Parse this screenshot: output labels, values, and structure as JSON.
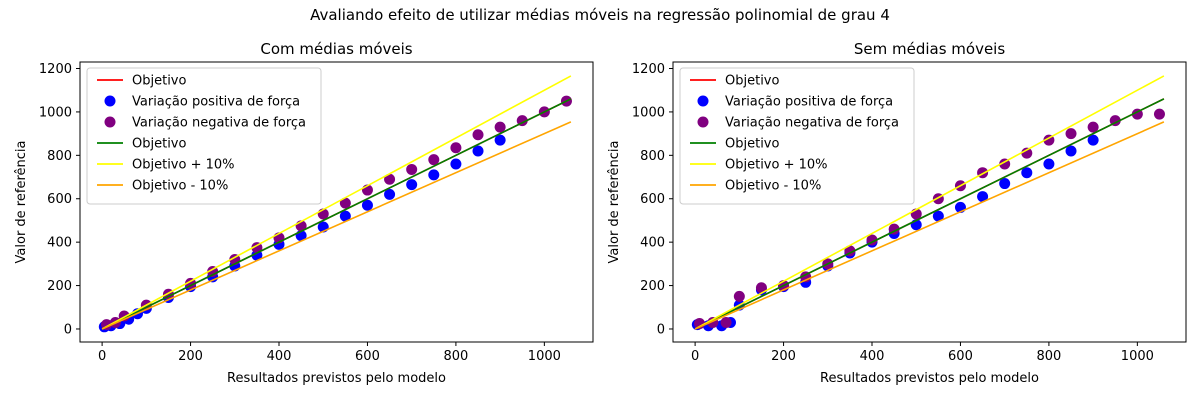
{
  "figure": {
    "suptitle": "Avaliando efeito de utilizar médias móveis na regressão polinomial de grau 4"
  },
  "colors": {
    "objetivo_red": "#ff0000",
    "positive": "#0000ff",
    "negative": "#800080",
    "objetivo_green": "#008000",
    "plus10": "#ffff00",
    "minus10": "#ffa500"
  },
  "chart_data": [
    {
      "type": "scatter",
      "title": "Com médias móveis",
      "xlabel": "Resultados previstos pelo modelo",
      "ylabel": "Valor de referência",
      "xlim": [
        -50,
        1110
      ],
      "ylim": [
        -60,
        1230
      ],
      "xticks": [
        0,
        200,
        400,
        600,
        800,
        1000
      ],
      "yticks": [
        0,
        200,
        400,
        600,
        800,
        1000,
        1200
      ],
      "legend_position": "upper-left",
      "legend": [
        "Objetivo",
        "Variação positiva de força",
        "Variação negativa de força",
        "Objetivo",
        "Objetivo + 10%",
        "Objetivo - 10%"
      ],
      "lines": [
        {
          "name": "Objetivo",
          "color": "#ff0000",
          "x": [
            0,
            1060
          ],
          "y": [
            0,
            1060
          ]
        },
        {
          "name": "Objetivo",
          "color": "#008000",
          "x": [
            0,
            1060
          ],
          "y": [
            0,
            1060
          ]
        },
        {
          "name": "Objetivo + 10%",
          "color": "#ffff00",
          "x": [
            0,
            1060
          ],
          "y": [
            0,
            1166
          ]
        },
        {
          "name": "Objetivo - 10%",
          "color": "#ffa500",
          "x": [
            0,
            1060
          ],
          "y": [
            0,
            954
          ]
        }
      ],
      "scatter_series": [
        {
          "name": "Variação positiva de força",
          "color": "#0000ff",
          "x": [
            5,
            20,
            40,
            60,
            80,
            100,
            150,
            200,
            250,
            300,
            350,
            400,
            450,
            500,
            550,
            600,
            650,
            700,
            750,
            800,
            850,
            900
          ],
          "y": [
            10,
            15,
            25,
            45,
            70,
            95,
            145,
            195,
            240,
            290,
            340,
            390,
            430,
            470,
            520,
            570,
            620,
            665,
            710,
            760,
            820,
            870
          ]
        },
        {
          "name": "Variação negativa de força",
          "color": "#800080",
          "x": [
            10,
            30,
            50,
            100,
            150,
            200,
            250,
            300,
            350,
            400,
            450,
            500,
            550,
            600,
            650,
            700,
            750,
            800,
            850,
            900,
            950,
            1000,
            1050
          ],
          "y": [
            20,
            30,
            60,
            110,
            160,
            210,
            265,
            320,
            375,
            420,
            475,
            530,
            580,
            640,
            690,
            735,
            780,
            835,
            895,
            930,
            960,
            1000,
            1050
          ]
        }
      ]
    },
    {
      "type": "scatter",
      "title": "Sem médias móveis",
      "xlabel": "Resultados previstos pelo modelo",
      "ylabel": "Valor de referência",
      "xlim": [
        -50,
        1110
      ],
      "ylim": [
        -60,
        1230
      ],
      "xticks": [
        0,
        200,
        400,
        600,
        800,
        1000
      ],
      "yticks": [
        0,
        200,
        400,
        600,
        800,
        1000,
        1200
      ],
      "legend_position": "upper-left",
      "legend": [
        "Objetivo",
        "Variação positiva de força",
        "Variação negativa de força",
        "Objetivo",
        "Objetivo + 10%",
        "Objetivo - 10%"
      ],
      "lines": [
        {
          "name": "Objetivo",
          "color": "#ff0000",
          "x": [
            0,
            1060
          ],
          "y": [
            0,
            1060
          ]
        },
        {
          "name": "Objetivo",
          "color": "#008000",
          "x": [
            0,
            1060
          ],
          "y": [
            0,
            1060
          ]
        },
        {
          "name": "Objetivo + 10%",
          "color": "#ffff00",
          "x": [
            0,
            1060
          ],
          "y": [
            0,
            1166
          ]
        },
        {
          "name": "Objetivo - 10%",
          "color": "#ffa500",
          "x": [
            0,
            1060
          ],
          "y": [
            0,
            954
          ]
        }
      ],
      "scatter_series": [
        {
          "name": "Variação positiva de força",
          "color": "#0000ff",
          "x": [
            5,
            30,
            60,
            80,
            100,
            150,
            200,
            250,
            300,
            350,
            400,
            450,
            500,
            550,
            600,
            650,
            700,
            750,
            800,
            850,
            900
          ],
          "y": [
            20,
            15,
            15,
            30,
            110,
            180,
            195,
            215,
            290,
            350,
            400,
            440,
            480,
            520,
            560,
            610,
            670,
            720,
            760,
            820,
            870
          ]
        },
        {
          "name": "Variação negativa de força",
          "color": "#800080",
          "x": [
            10,
            40,
            70,
            100,
            150,
            200,
            250,
            300,
            350,
            400,
            450,
            500,
            550,
            600,
            650,
            700,
            750,
            800,
            850,
            900,
            950,
            1000,
            1050
          ],
          "y": [
            25,
            30,
            30,
            150,
            190,
            200,
            240,
            300,
            360,
            410,
            460,
            530,
            600,
            660,
            720,
            760,
            810,
            870,
            900,
            930,
            960,
            990,
            990
          ]
        }
      ]
    }
  ]
}
